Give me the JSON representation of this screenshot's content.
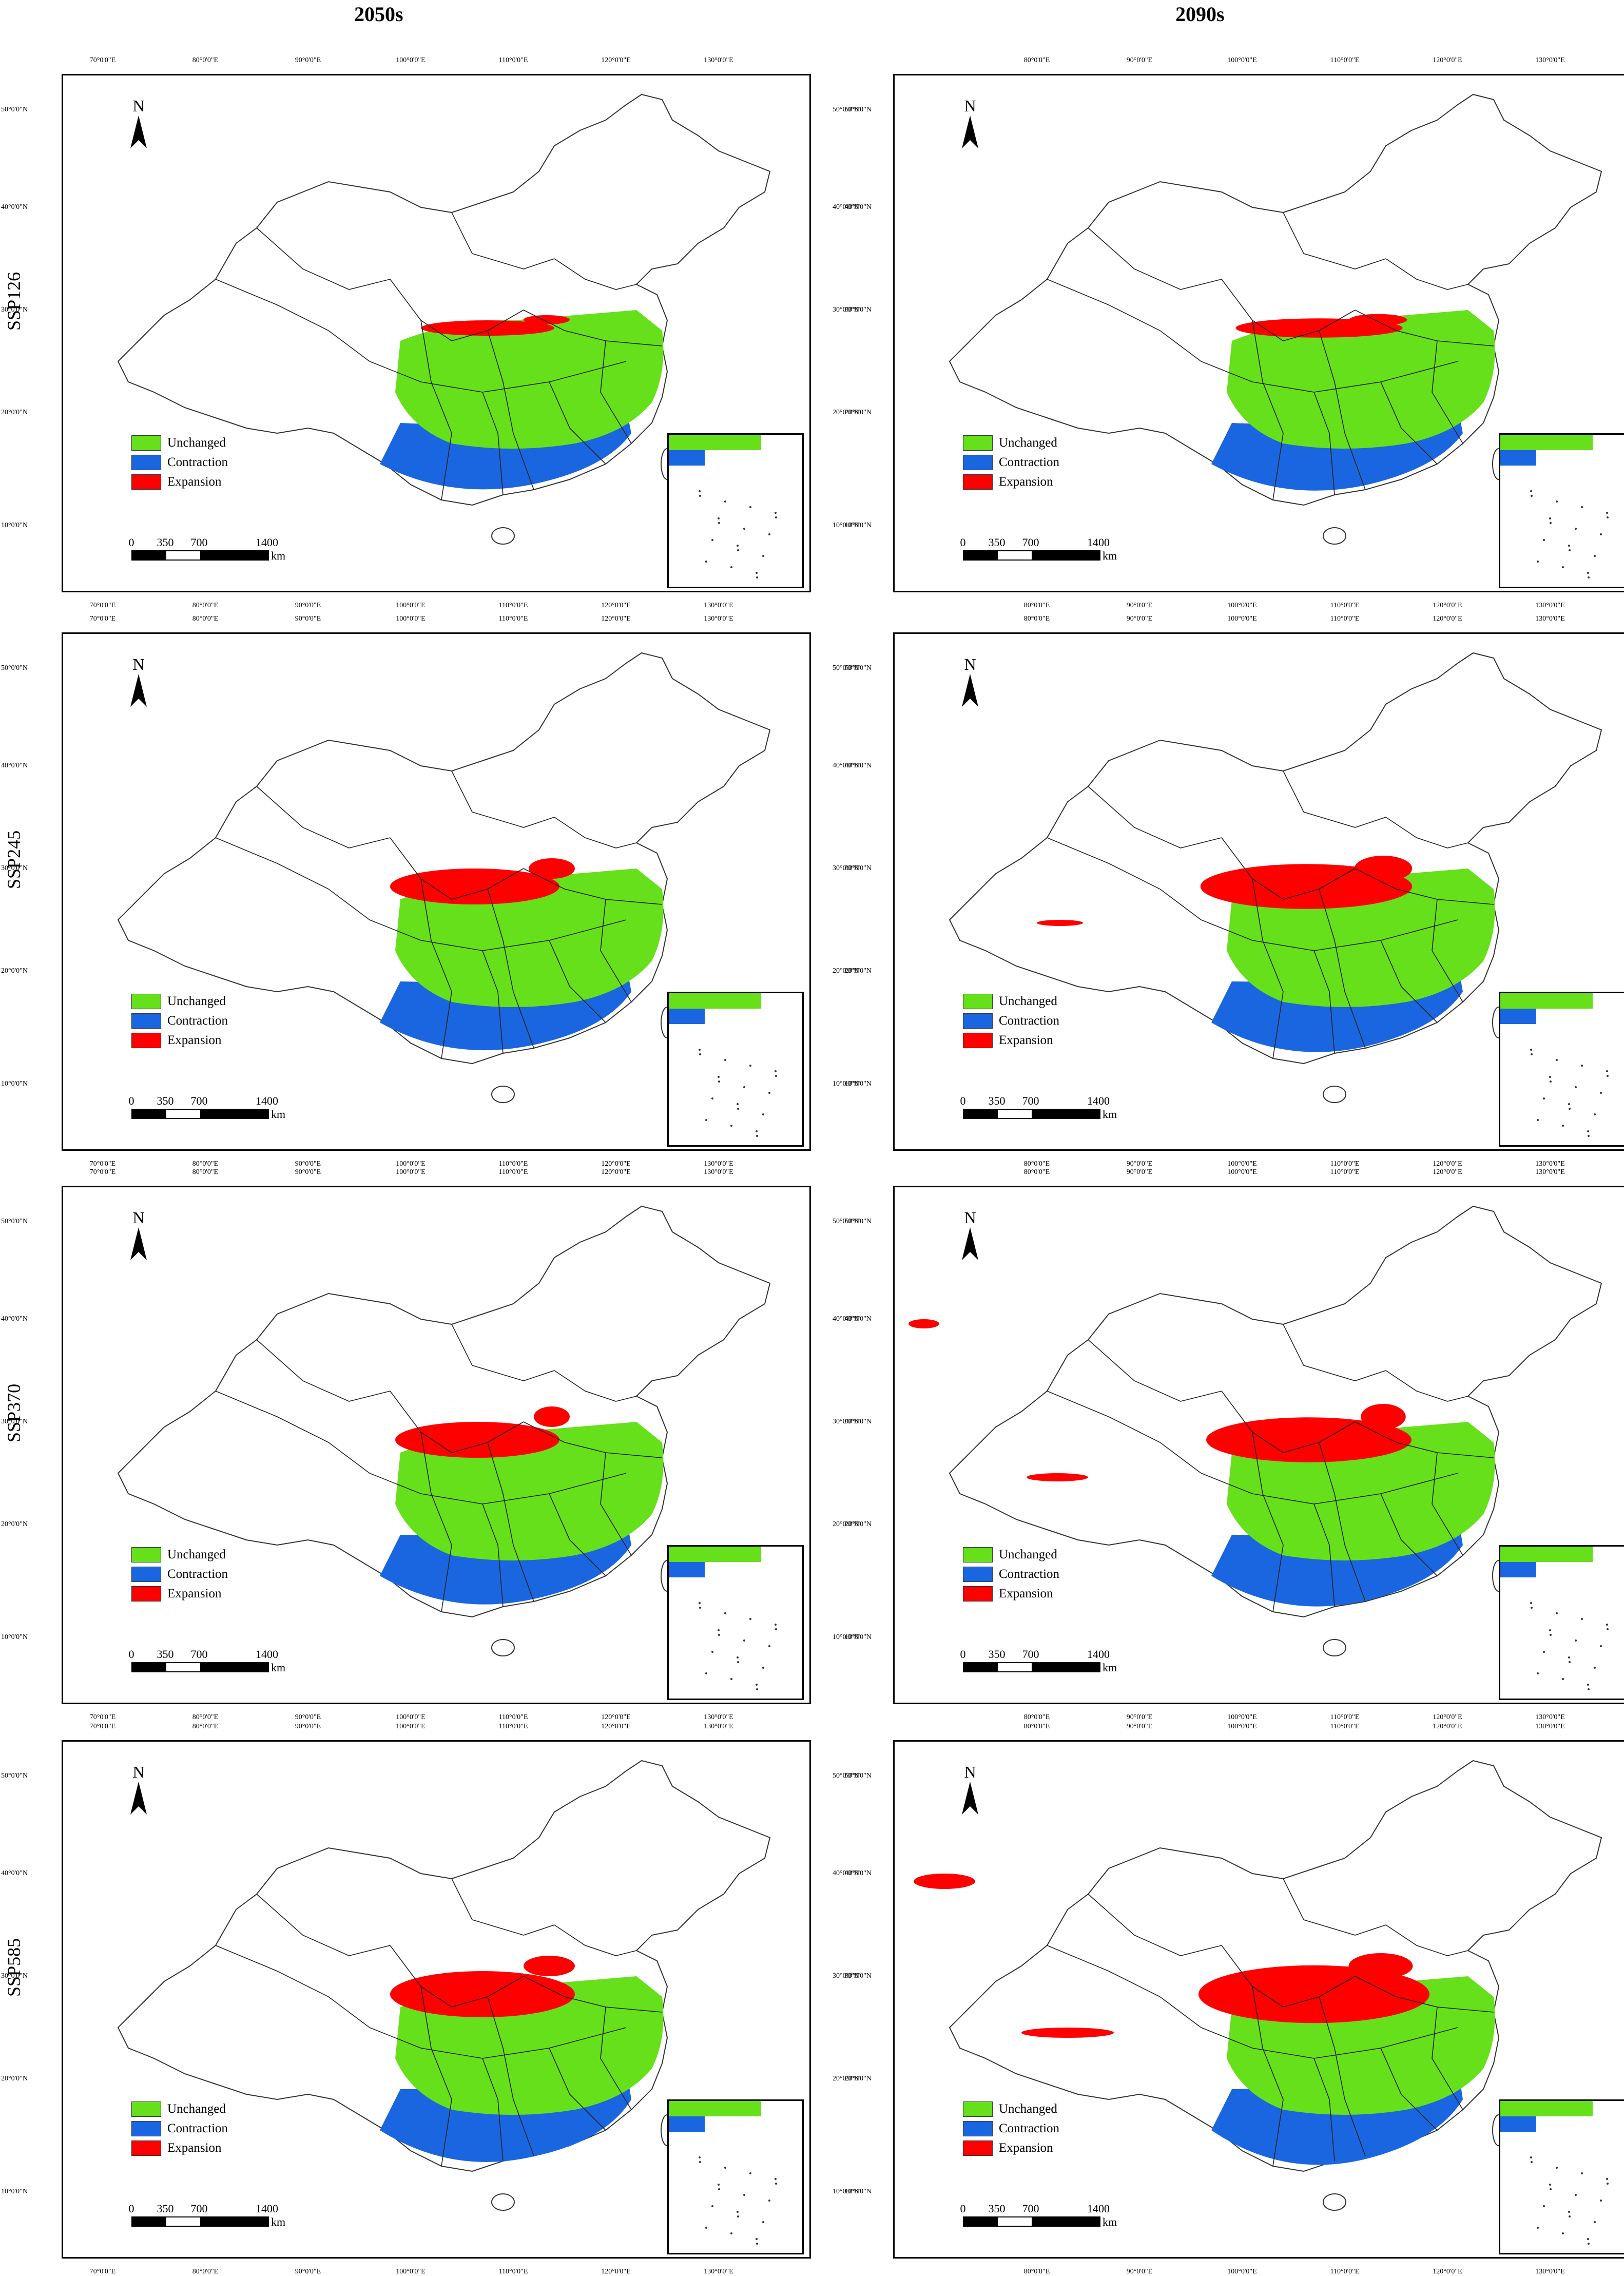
{
  "columns": [
    "2050s",
    "2090s"
  ],
  "rows": [
    "SSP126",
    "SSP245",
    "SSP370",
    "SSP585"
  ],
  "legend": [
    {
      "label": "Unchanged",
      "color": "#66e01a"
    },
    {
      "label": "Contraction",
      "color": "#1a66e0"
    },
    {
      "label": "Expansion",
      "color": "#ff0000"
    }
  ],
  "scalebar": {
    "labels": [
      "0",
      "350",
      "700",
      "1400"
    ],
    "unit": "km"
  },
  "north_label": "N",
  "lon_ticks": [
    "70°0'0\"E",
    "80°0'0\"E",
    "90°0'0\"E",
    "100°0'0\"E",
    "110°0'0\"E",
    "120°0'0\"E",
    "130°0'0\"E"
  ],
  "lat_ticks": [
    "50°0'0\"N",
    "40°0'0\"N",
    "30°0'0\"N",
    "20°0'0\"N",
    "10°0'0\"N"
  ]
}
